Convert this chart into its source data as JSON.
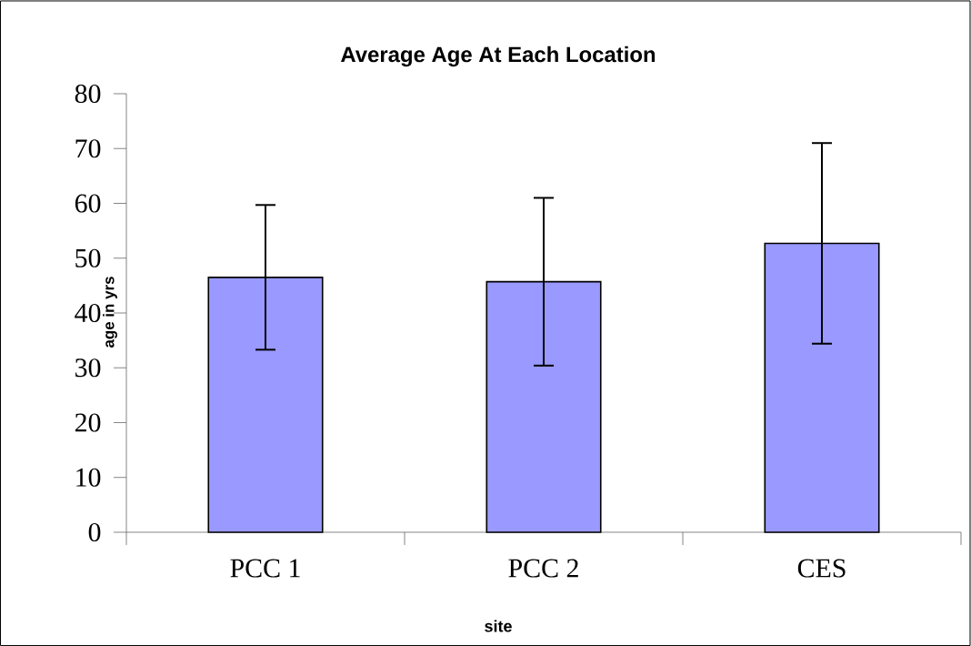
{
  "chart_data": {
    "type": "bar",
    "title": "Average Age At Each Location",
    "xlabel": "site",
    "ylabel": "age in yrs",
    "categories": [
      "PCC 1",
      "PCC 2",
      "CES"
    ],
    "values": [
      46.5,
      45.7,
      52.7
    ],
    "errors": [
      13.2,
      15.3,
      18.3
    ],
    "color": "#9999ff",
    "ylim": [
      0,
      80
    ],
    "yticks": [
      0,
      10,
      20,
      30,
      40,
      50,
      60,
      70,
      80
    ]
  }
}
